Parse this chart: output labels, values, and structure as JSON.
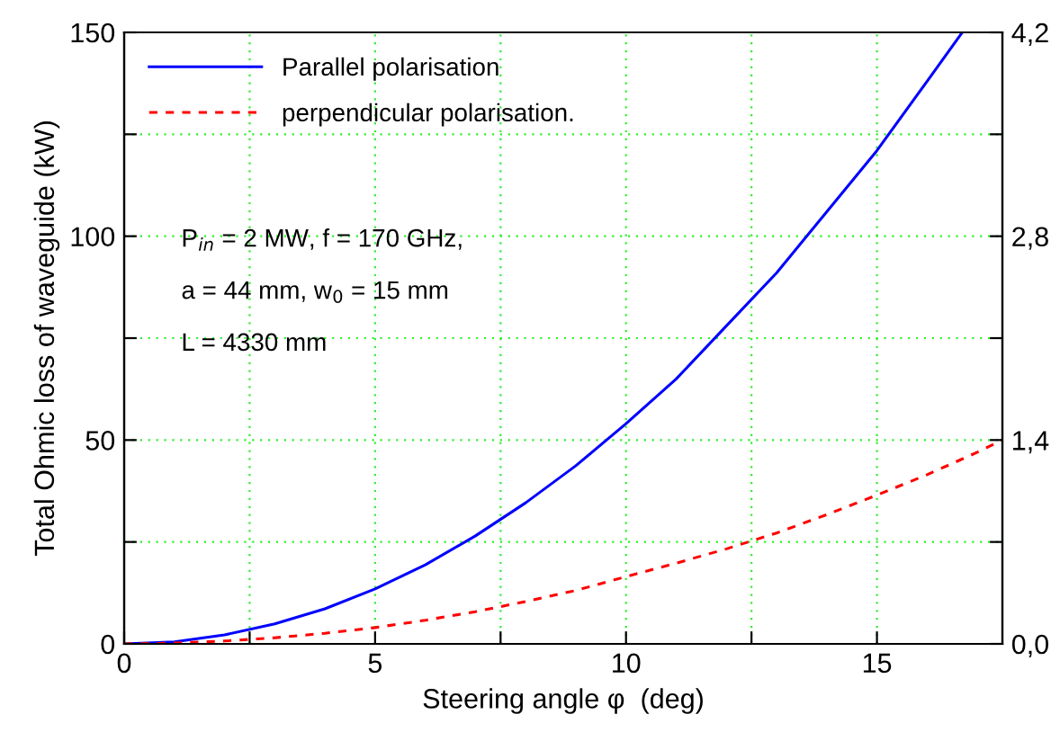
{
  "chart_data": {
    "type": "line",
    "xlabel": "Steering angle φ  (deg)",
    "ylabel": "Total Ohmic loss of waveguide (kW)",
    "annotations": [
      "P$_{in}$ = 2 MW, f = 170 GHz,",
      "a = 44 mm, w$_{0}$ = 15 mm",
      "L = 4330 mm"
    ],
    "series": [
      {
        "name": "Parallel polarisation",
        "color": "#0000ff",
        "line_style": "solid",
        "x": [
          0,
          1,
          2,
          3,
          4,
          5,
          6,
          7,
          8,
          9,
          10,
          11,
          12,
          13,
          14,
          15,
          16,
          16.7
        ],
        "values": [
          0,
          0.5,
          2.2,
          4.9,
          8.6,
          13.5,
          19.4,
          26.5,
          34.6,
          43.7,
          54,
          65,
          78,
          91,
          106,
          121,
          138,
          150
        ]
      },
      {
        "name": "perpendicular polarisation.",
        "color": "#ff0000",
        "line_style": "dashed",
        "x": [
          0,
          1,
          2,
          3,
          4,
          5,
          6,
          7,
          8,
          9,
          10,
          11,
          12,
          13,
          14,
          15,
          16,
          17,
          17.5
        ],
        "values": [
          0,
          0.2,
          0.7,
          1.5,
          2.6,
          4,
          5.8,
          7.9,
          10.4,
          13.1,
          16.5,
          19.8,
          23.3,
          27.2,
          31.7,
          36.5,
          41.5,
          47,
          50
        ]
      }
    ],
    "xlim": [
      0,
      17.5
    ],
    "xticks": [
      0,
      {
        "value": 2.5,
        "label": null
      },
      5,
      {
        "value": 7.5,
        "label": null
      },
      10,
      {
        "value": 12.5,
        "label": null
      },
      15
    ],
    "ylim": [
      0,
      150
    ],
    "yticks": [
      0,
      {
        "value": 25,
        "label": null
      },
      50,
      {
        "value": 75,
        "label": null
      },
      100,
      {
        "value": 125,
        "label": null
      },
      150
    ],
    "y2lim": [
      0,
      4.2
    ],
    "y2ticks": [
      {
        "value": 0,
        "label": "0,0"
      },
      {
        "value": 0.7,
        "label": null
      },
      {
        "value": 1.4,
        "label": "1,4"
      },
      {
        "value": 2.1,
        "label": null
      },
      {
        "value": 2.8,
        "label": "2,8"
      },
      {
        "value": 3.5,
        "label": null
      },
      {
        "value": 4.2,
        "label": "4,2"
      }
    ],
    "grid": true,
    "legend": "top left",
    "marker": "none"
  }
}
